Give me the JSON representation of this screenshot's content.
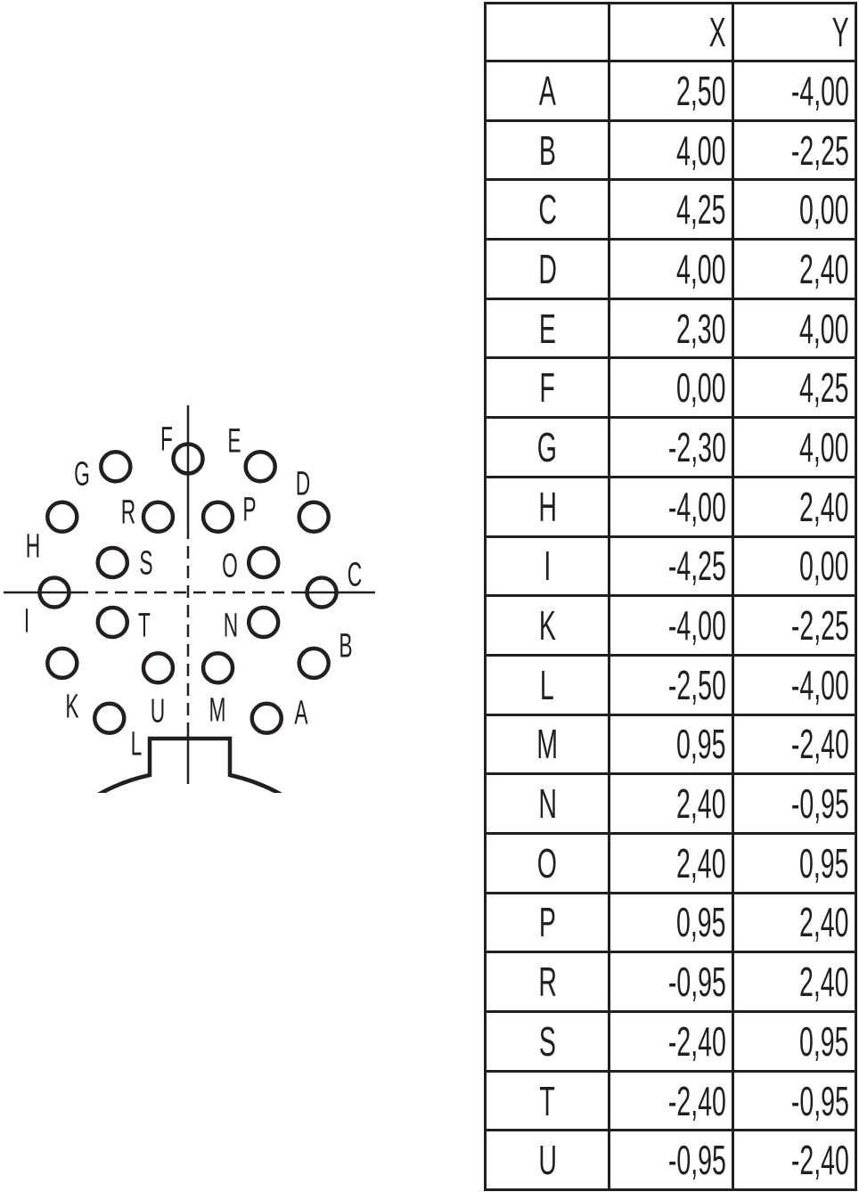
{
  "table": {
    "headers": [
      "",
      "X",
      "Y"
    ],
    "rows": [
      {
        "pin": "A",
        "x": "2,50",
        "y": "-4,00"
      },
      {
        "pin": "B",
        "x": "4,00",
        "y": "-2,25"
      },
      {
        "pin": "C",
        "x": "4,25",
        "y": "0,00"
      },
      {
        "pin": "D",
        "x": "4,00",
        "y": "2,40"
      },
      {
        "pin": "E",
        "x": "2,30",
        "y": "4,00"
      },
      {
        "pin": "F",
        "x": "0,00",
        "y": "4,25"
      },
      {
        "pin": "G",
        "x": "-2,30",
        "y": "4,00"
      },
      {
        "pin": "H",
        "x": "-4,00",
        "y": "2,40"
      },
      {
        "pin": "I",
        "x": "-4,25",
        "y": "0,00"
      },
      {
        "pin": "K",
        "x": "-4,00",
        "y": "-2,25"
      },
      {
        "pin": "L",
        "x": "-2,50",
        "y": "-4,00"
      },
      {
        "pin": "M",
        "x": "0,95",
        "y": "-2,40"
      },
      {
        "pin": "N",
        "x": "2,40",
        "y": "-0,95"
      },
      {
        "pin": "O",
        "x": "2,40",
        "y": "0,95"
      },
      {
        "pin": "P",
        "x": "0,95",
        "y": "2,40"
      },
      {
        "pin": "R",
        "x": "-0,95",
        "y": "2,40"
      },
      {
        "pin": "S",
        "x": "-2,40",
        "y": "0,95"
      },
      {
        "pin": "T",
        "x": "-2,40",
        "y": "-0,95"
      },
      {
        "pin": "U",
        "x": "-0,95",
        "y": "-2,40"
      }
    ]
  },
  "colors": {
    "line": "#231f20",
    "background": "#ffffff"
  }
}
